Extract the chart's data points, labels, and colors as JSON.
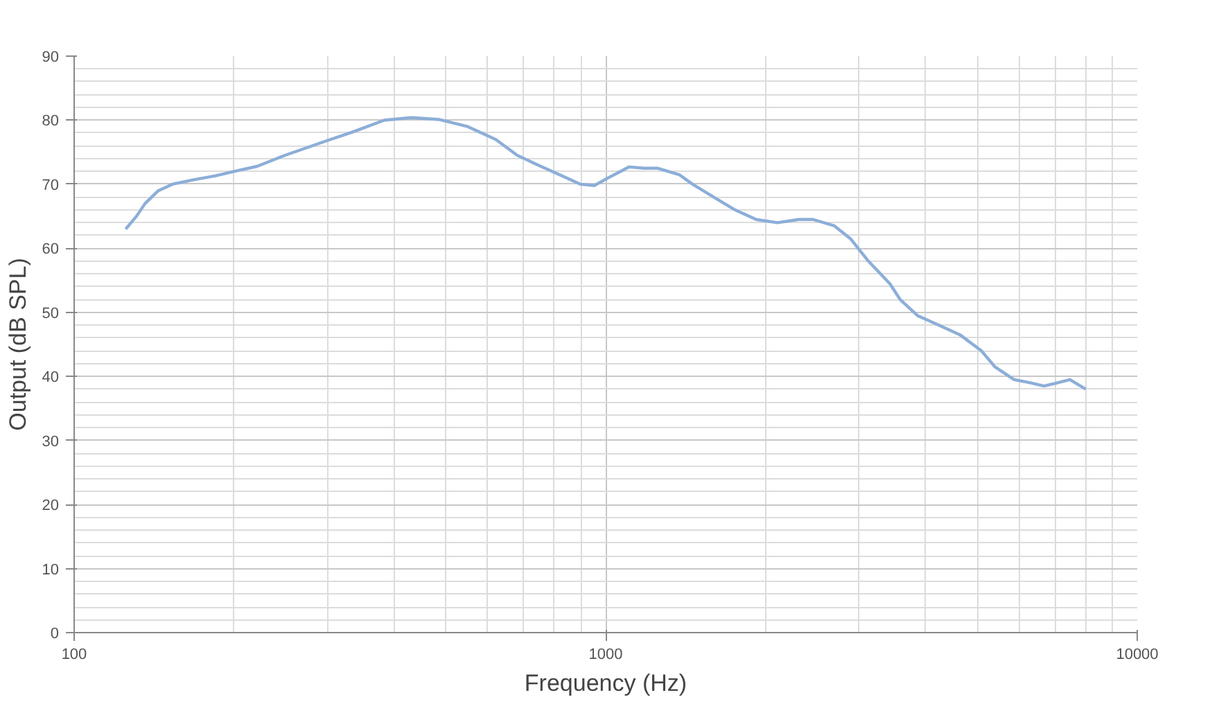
{
  "chart_data": {
    "type": "line",
    "xlabel": "Frequency (Hz)",
    "ylabel": "Output (dB SPL)",
    "log": "x",
    "xlim": [
      100,
      10000
    ],
    "xticks": [
      100,
      1000,
      10000
    ],
    "ylim": [
      0,
      90
    ],
    "yticks": [
      0,
      10,
      20,
      30,
      40,
      50,
      60,
      70,
      80,
      90
    ],
    "grid": true,
    "marker": "none",
    "line_style": "solid",
    "x": [
      125,
      131,
      136,
      144,
      153,
      168,
      184,
      200,
      221,
      249,
      299,
      338,
      383,
      431,
      487,
      550,
      621,
      682,
      746,
      818,
      897,
      952,
      1011,
      1106,
      1179,
      1253,
      1375,
      1457,
      1596,
      1750,
      1919,
      2104,
      2308,
      2456,
      2693,
      2887,
      3120,
      3423,
      3581,
      3860,
      4234,
      4640,
      5090,
      5398,
      5866,
      6290,
      6674,
      7085,
      7470,
      8000
    ],
    "series": [
      {
        "color": "#8caed8",
        "values": [
          63,
          65,
          67,
          69,
          70,
          70.7,
          71.3,
          72,
          72.8,
          74.5,
          76.8,
          78.3,
          80,
          80.4,
          80.1,
          79,
          77,
          74.5,
          73,
          71.5,
          70,
          69.8,
          71,
          72.7,
          72.5,
          72.5,
          71.5,
          70,
          68,
          66,
          64.5,
          64,
          64.5,
          64.5,
          63.5,
          61.5,
          58,
          54.5,
          52,
          49.5,
          48,
          46.5,
          44,
          41.5,
          39.5,
          39,
          38.5,
          39,
          39.5,
          38
        ]
      }
    ]
  }
}
